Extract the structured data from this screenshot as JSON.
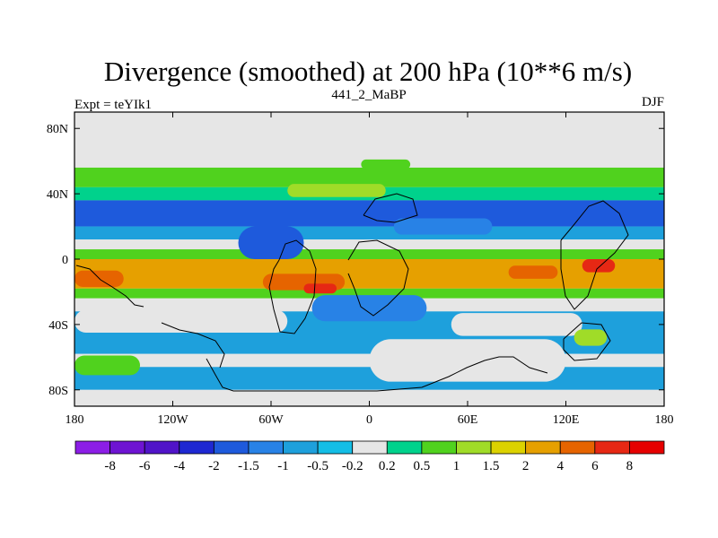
{
  "chart_data": {
    "type": "heatmap",
    "title": "Divergence (smoothed) at 200 hPa (10**6 m/s)",
    "left_subtitle": "Expt = teYIk1",
    "center_subtitle": "441_2_MaBP",
    "right_subtitle": "DJF",
    "x_axis": {
      "range": [
        -180,
        180
      ],
      "ticks": [
        -180,
        -120,
        -60,
        0,
        60,
        120,
        180
      ],
      "tick_labels": [
        "180",
        "120W",
        "60W",
        "0",
        "60E",
        "120E",
        "180"
      ]
    },
    "y_axis": {
      "range": [
        -90,
        90
      ],
      "ticks": [
        80,
        40,
        0,
        -40,
        -80
      ],
      "tick_labels": [
        "80N",
        "40N",
        "0",
        "40S",
        "80S"
      ]
    },
    "colorbar": {
      "labels": [
        "-8",
        "-6",
        "-4",
        "-2",
        "-1.5",
        "-1",
        "-0.5",
        "-0.2",
        "0.2",
        "0.5",
        "1",
        "1.5",
        "2",
        "4",
        "6",
        "8"
      ],
      "colors": [
        "#8c1ee6",
        "#6e14d2",
        "#5014c8",
        "#1e28d2",
        "#1e5adc",
        "#2882e6",
        "#1ea0dc",
        "#14bee6",
        "#e6e6e6",
        "#00d28c",
        "#50d21e",
        "#a0dc28",
        "#dcd200",
        "#e6a000",
        "#e66400",
        "#e62814",
        "#e60000"
      ]
    },
    "field_bands": [
      {
        "lat_from": 90,
        "lat_to": 56,
        "level": 8
      },
      {
        "lat_from": 56,
        "lat_to": 44,
        "level": 10
      },
      {
        "lat_from": 44,
        "lat_to": 36,
        "level": 9
      },
      {
        "lat_from": 36,
        "lat_to": 20,
        "level": 4
      },
      {
        "lat_from": 20,
        "lat_to": 12,
        "level": 6
      },
      {
        "lat_from": 12,
        "lat_to": 6,
        "level": 8
      },
      {
        "lat_from": 6,
        "lat_to": 0,
        "level": 10
      },
      {
        "lat_from": 0,
        "lat_to": -18,
        "level": 13
      },
      {
        "lat_from": -18,
        "lat_to": -24,
        "level": 10
      },
      {
        "lat_from": -24,
        "lat_to": -32,
        "level": 8
      },
      {
        "lat_from": -32,
        "lat_to": -58,
        "level": 6
      },
      {
        "lat_from": -58,
        "lat_to": -66,
        "level": 8
      },
      {
        "lat_from": -66,
        "lat_to": -80,
        "level": 6
      },
      {
        "lat_from": -80,
        "lat_to": -90,
        "level": 8
      }
    ],
    "field_cells": [
      {
        "lon": -165,
        "lat": -12,
        "w": 30,
        "h": 10,
        "level": 14
      },
      {
        "lon": -40,
        "lat": -14,
        "w": 50,
        "h": 10,
        "level": 14
      },
      {
        "lon": 100,
        "lat": -8,
        "w": 30,
        "h": 8,
        "level": 14
      },
      {
        "lon": 140,
        "lat": -4,
        "w": 20,
        "h": 8,
        "level": 15
      },
      {
        "lon": -30,
        "lat": -18,
        "w": 20,
        "h": 6,
        "level": 15
      },
      {
        "lon": -115,
        "lat": -38,
        "w": 130,
        "h": 14,
        "level": 8
      },
      {
        "lon": 0,
        "lat": -30,
        "w": 70,
        "h": 16,
        "level": 5
      },
      {
        "lon": 90,
        "lat": -40,
        "w": 80,
        "h": 14,
        "level": 8
      },
      {
        "lon": 135,
        "lat": -48,
        "w": 20,
        "h": 10,
        "level": 11
      },
      {
        "lon": -160,
        "lat": -65,
        "w": 40,
        "h": 12,
        "level": 10
      },
      {
        "lon": 60,
        "lat": -62,
        "w": 120,
        "h": 26,
        "level": 8
      },
      {
        "lon": -60,
        "lat": 10,
        "w": 40,
        "h": 20,
        "level": 4
      },
      {
        "lon": 45,
        "lat": 20,
        "w": 60,
        "h": 10,
        "level": 5
      },
      {
        "lon": -20,
        "lat": 42,
        "w": 60,
        "h": 8,
        "level": 11
      },
      {
        "lon": 10,
        "lat": 58,
        "w": 30,
        "h": 6,
        "level": 10
      }
    ]
  },
  "colors": {
    "background": "#ffffff",
    "plot_bg": "#e6e6e6",
    "coastline": "#000000"
  }
}
